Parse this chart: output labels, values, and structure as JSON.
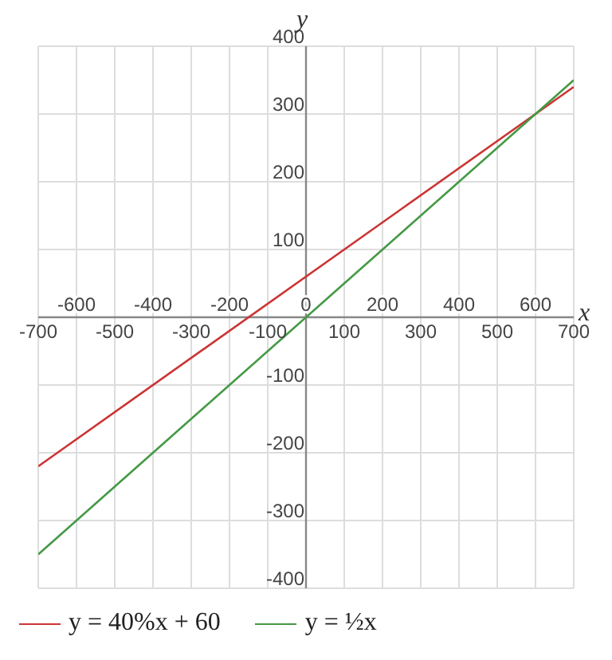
{
  "chart_data": {
    "type": "line",
    "xlabel": "x",
    "ylabel": "y",
    "xlim": [
      -700,
      700
    ],
    "ylim": [
      -400,
      400
    ],
    "xticks": [
      -700,
      -500,
      -300,
      -100,
      100,
      300,
      500,
      700
    ],
    "x2lim": [
      -700,
      700
    ],
    "x2ticks": [
      -600,
      -400,
      -200,
      0,
      200,
      400,
      600
    ],
    "yticks": [
      -400,
      -300,
      -200,
      -100,
      100,
      200,
      300,
      400
    ],
    "x": [
      -700,
      700
    ],
    "series": [
      {
        "name": "y = 40%x + 60",
        "color": "#cc3333",
        "values": [
          -220,
          340
        ]
      },
      {
        "name": "y = ½x",
        "color": "#449944",
        "values": [
          -350,
          350
        ]
      }
    ],
    "grid": true,
    "legend": "bottom",
    "marker": "none",
    "line_style": "solid"
  }
}
